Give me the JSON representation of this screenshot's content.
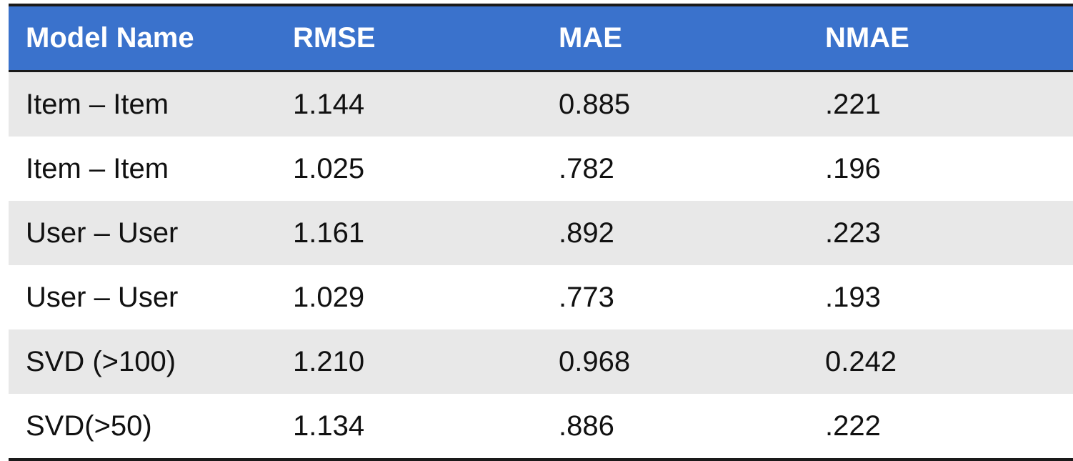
{
  "table": {
    "header": [
      "Model Name",
      "RMSE",
      "MAE",
      "NMAE"
    ],
    "rows": [
      [
        "Item – Item",
        "1.144",
        "0.885",
        ".221"
      ],
      [
        "Item – Item",
        "1.025",
        ".782",
        ".196"
      ],
      [
        "User – User",
        "1.161",
        ".892",
        ".223"
      ],
      [
        "User – User",
        "1.029",
        ".773",
        ".193"
      ],
      [
        "SVD (>100)",
        "1.210",
        "0.968",
        "0.242"
      ],
      [
        "SVD(>50)",
        "1.134",
        ".886",
        ".222"
      ]
    ]
  }
}
